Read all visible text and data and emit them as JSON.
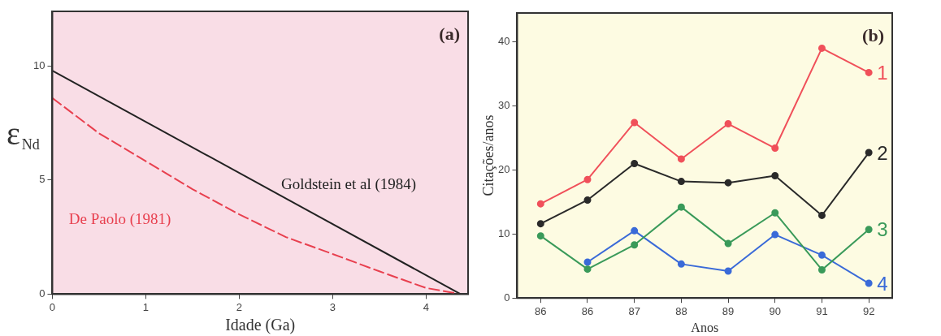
{
  "chart_data": [
    {
      "type": "line",
      "xlabel": "Idade (Ga)",
      "ylabel": "ε$_{Nd}$",
      "annotations": [
        "(a)"
      ],
      "xlim": [
        0,
        4.45
      ],
      "xticks": [
        0,
        1,
        2,
        3,
        4
      ],
      "ylim": [
        0,
        12.4
      ],
      "yticks": [
        0,
        5,
        10
      ],
      "grid": false,
      "legend": false,
      "marker": "none",
      "series": [
        {
          "name": "Goldstein et al (1984)",
          "color": "#222222",
          "line_style": "solid",
          "x": [
            0,
            4.37
          ],
          "values": [
            9.8,
            0
          ]
        },
        {
          "name": "De Paolo (1981)",
          "color": "#e8404f",
          "line_style": "dashed",
          "x": [
            0,
            0.5,
            1,
            1.5,
            2,
            2.5,
            3,
            3.5,
            4,
            4.37
          ],
          "values": [
            8.6,
            7.05,
            5.83,
            4.6,
            3.5,
            2.5,
            1.76,
            1.0,
            0.27,
            0
          ]
        }
      ]
    },
    {
      "type": "line",
      "xlabel": "Anos",
      "ylabel": "Citações/anos",
      "annotations": [
        "(b)"
      ],
      "categories": [
        "86",
        "86",
        "87",
        "88",
        "89",
        "90",
        "91",
        "92"
      ],
      "ylim": [
        0,
        44.5
      ],
      "yticks": [
        0,
        10,
        20,
        30,
        40
      ],
      "grid": false,
      "legend": false,
      "marker": "circle",
      "series": [
        {
          "name": "1",
          "color": "#f0505a",
          "values": [
            14.7,
            18.5,
            27.4,
            21.7,
            27.2,
            23.4,
            39.0,
            35.2
          ]
        },
        {
          "name": "2",
          "color": "#2a2a2a",
          "values": [
            11.6,
            15.3,
            21.0,
            18.2,
            18.0,
            19.1,
            12.9,
            22.7
          ]
        },
        {
          "name": "3",
          "color": "#3a9a5a",
          "values": [
            9.7,
            4.5,
            8.3,
            14.2,
            8.5,
            13.3,
            4.4,
            10.7
          ]
        },
        {
          "name": "4",
          "color": "#3a6ad8",
          "values": [
            null,
            5.6,
            10.5,
            5.3,
            4.2,
            9.9,
            6.7,
            2.3
          ]
        }
      ]
    }
  ]
}
